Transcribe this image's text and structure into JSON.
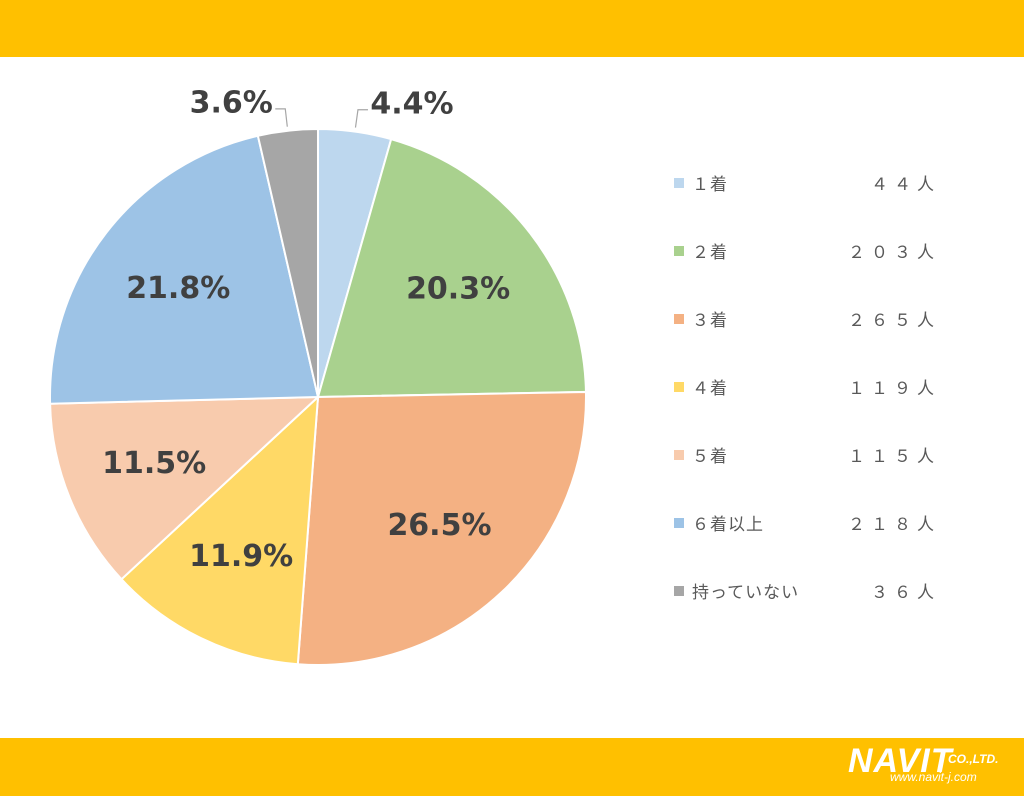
{
  "chart_data": {
    "type": "pie",
    "title": "",
    "slices": [
      {
        "label": "１着",
        "count": "４４人",
        "percent": 4.4,
        "percent_label": "4.4%",
        "color": "#BDD7EE"
      },
      {
        "label": "２着",
        "count": "２０３人",
        "percent": 20.3,
        "percent_label": "20.3%",
        "color": "#A9D18E"
      },
      {
        "label": "３着",
        "count": "２６５人",
        "percent": 26.5,
        "percent_label": "26.5%",
        "color": "#F4B183"
      },
      {
        "label": "４着",
        "count": "１１９人",
        "percent": 11.9,
        "percent_label": "11.9%",
        "color": "#FFD966"
      },
      {
        "label": "５着",
        "count": "１１５人",
        "percent": 11.5,
        "percent_label": "11.5%",
        "color": "#F8CBAD"
      },
      {
        "label": "６着以上",
        "count": "２１８人",
        "percent": 21.8,
        "percent_label": "21.8%",
        "color": "#9DC3E6"
      },
      {
        "label": "持っていない",
        "count": "３６人",
        "percent": 3.6,
        "percent_label": "3.6%",
        "color": "#A6A6A6"
      }
    ],
    "legend_position": "right",
    "start_angle": "12 o'clock, clockwise"
  },
  "brand": {
    "logo_text": "NAVIT",
    "company_suffix": "CO.,LTD.",
    "url": "www.navit-j.com",
    "band_color": "#FFC000"
  }
}
